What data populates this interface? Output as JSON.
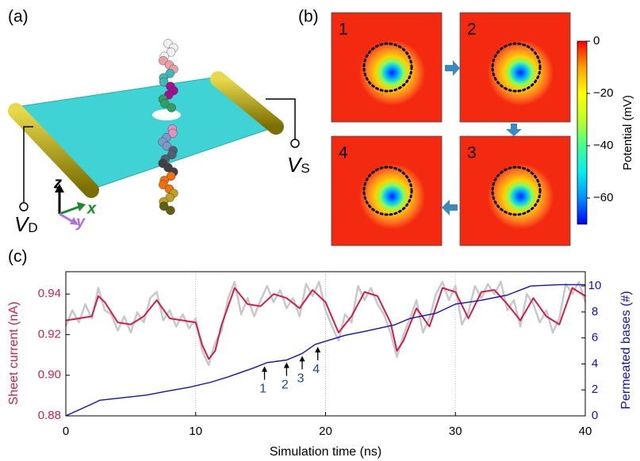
{
  "panel_a": {
    "label": "(a)",
    "drain": {
      "symbol": "V",
      "subscript": "D"
    },
    "source": {
      "symbol": "V",
      "subscript": "S"
    },
    "axes": {
      "z": "z",
      "x": "x",
      "y": "y"
    }
  },
  "panel_b": {
    "label": "(b)",
    "frames": [
      "1",
      "2",
      "3",
      "4"
    ]
  },
  "panel_c": {
    "label": "(c)"
  },
  "chart_data": [
    {
      "type": "colorbar",
      "label": "Potential (mV)",
      "clim": [
        -70,
        0
      ],
      "colors": [
        "#0000ff",
        "#0090ff",
        "#00f0f0",
        "#40ff90",
        "#c0ff20",
        "#ffff00",
        "#ffa000",
        "#ff0000"
      ],
      "ticks": [
        0,
        {
          "value": -20,
          "label": "−20"
        },
        {
          "value": -40,
          "label": "−40"
        },
        {
          "value": -60,
          "label": "−60"
        }
      ]
    },
    {
      "type": "line",
      "xlabel": "Simulation time (ns)",
      "ylabel": "Sheet current (nA)",
      "y2label": "Permeated bases (#)",
      "xlim": [
        0,
        40
      ],
      "xticks": [
        0,
        10,
        20,
        30,
        40
      ],
      "ylim": [
        0.88,
        0.951
      ],
      "yticks": [
        0.88,
        {
          "value": 0.9,
          "label": "0.90"
        },
        0.92,
        0.94
      ],
      "y2lim": [
        0,
        11.1
      ],
      "y2ticks": [
        0,
        2,
        4,
        6,
        8,
        10
      ],
      "xgrid": true,
      "ycolor": "#d01f4a",
      "y2color": "#1010c0",
      "series": [
        {
          "color": "#c8c8c8",
          "x": [
            0,
            0.5,
            1,
            1.5,
            2,
            2.5,
            3,
            3.5,
            4,
            4.5,
            5,
            5.5,
            6,
            6.5,
            7,
            7.5,
            8,
            8.5,
            9,
            9.5,
            10,
            10.5,
            11,
            11.5,
            12,
            12.5,
            13,
            13.5,
            14,
            14.5,
            15,
            15.5,
            16,
            16.5,
            17,
            17.5,
            18,
            18.5,
            19,
            19.5,
            20,
            20.5,
            21,
            21.5,
            22,
            22.5,
            23,
            23.5,
            24,
            24.5,
            25,
            25.5,
            26,
            26.5,
            27,
            27.5,
            28,
            28.5,
            29,
            29.5,
            30,
            30.5,
            31,
            31.5,
            32,
            32.5,
            33,
            33.5,
            34,
            34.5,
            35,
            35.5,
            36,
            36.5,
            37,
            37.5,
            38,
            38.5,
            39,
            39.5,
            40
          ],
          "values": [
            0.924,
            0.932,
            0.926,
            0.935,
            0.928,
            0.943,
            0.932,
            0.93,
            0.922,
            0.929,
            0.921,
            0.931,
            0.926,
            0.938,
            0.941,
            0.927,
            0.932,
            0.924,
            0.93,
            0.923,
            0.928,
            0.912,
            0.905,
            0.916,
            0.922,
            0.938,
            0.946,
            0.93,
            0.938,
            0.929,
            0.937,
            0.944,
            0.936,
            0.942,
            0.933,
            0.938,
            0.929,
            0.945,
            0.939,
            0.946,
            0.932,
            0.924,
            0.917,
            0.93,
            0.926,
            0.944,
            0.937,
            0.943,
            0.935,
            0.93,
            0.921,
            0.909,
            0.92,
            0.928,
            0.937,
            0.921,
            0.928,
            0.94,
            0.946,
            0.937,
            0.944,
            0.925,
            0.931,
            0.944,
            0.938,
            0.945,
            0.94,
            0.946,
            0.932,
            0.937,
            0.924,
            0.94,
            0.935,
            0.926,
            0.932,
            0.921,
            0.928,
            0.945,
            0.94,
            0.946,
            0.936
          ]
        },
        {
          "color": "#d01f4a",
          "x": [
            0,
            1,
            2,
            2.5,
            3,
            4,
            5,
            6,
            7,
            8,
            9,
            10,
            10.5,
            11,
            11.5,
            12,
            13,
            14,
            15,
            16,
            17,
            18,
            19,
            20,
            21,
            22,
            23,
            24,
            25,
            25.5,
            26,
            27,
            28,
            29,
            30,
            31,
            32,
            33,
            34,
            35,
            36,
            37,
            38,
            39,
            40
          ],
          "values": [
            0.927,
            0.928,
            0.929,
            0.939,
            0.936,
            0.926,
            0.925,
            0.929,
            0.937,
            0.928,
            0.927,
            0.926,
            0.915,
            0.908,
            0.912,
            0.925,
            0.943,
            0.935,
            0.934,
            0.94,
            0.938,
            0.933,
            0.942,
            0.936,
            0.921,
            0.929,
            0.941,
            0.939,
            0.926,
            0.912,
            0.917,
            0.933,
            0.924,
            0.943,
            0.941,
            0.928,
            0.941,
            0.942,
            0.935,
            0.927,
            0.938,
            0.929,
            0.925,
            0.943,
            0.939
          ]
        },
        {
          "color": "#1010c0",
          "axis": "y2",
          "x": [
            0,
            2.2,
            2.6,
            6.2,
            7.8,
            9.5,
            11.2,
            12.5,
            14.5,
            15.5,
            17,
            18.2,
            19.2,
            21.5,
            23,
            25.3,
            26.5,
            28.5,
            30,
            32,
            34,
            35.8,
            38,
            40
          ],
          "values": [
            0,
            1,
            1.2,
            1.6,
            1.9,
            2.2,
            2.6,
            3.0,
            3.7,
            4.1,
            4.3,
            4.8,
            5.5,
            6.2,
            6.5,
            7.0,
            7.5,
            7.9,
            8.6,
            8.9,
            9.3,
            10,
            10.1,
            10.1
          ]
        }
      ],
      "annotations": [
        {
          "text": "1",
          "x": 15.3,
          "y": 4.0
        },
        {
          "text": "2",
          "x": 17,
          "y": 4.3
        },
        {
          "text": "3",
          "x": 18.2,
          "y": 4.8
        },
        {
          "text": "4",
          "x": 19.4,
          "y": 5.5
        }
      ]
    }
  ]
}
